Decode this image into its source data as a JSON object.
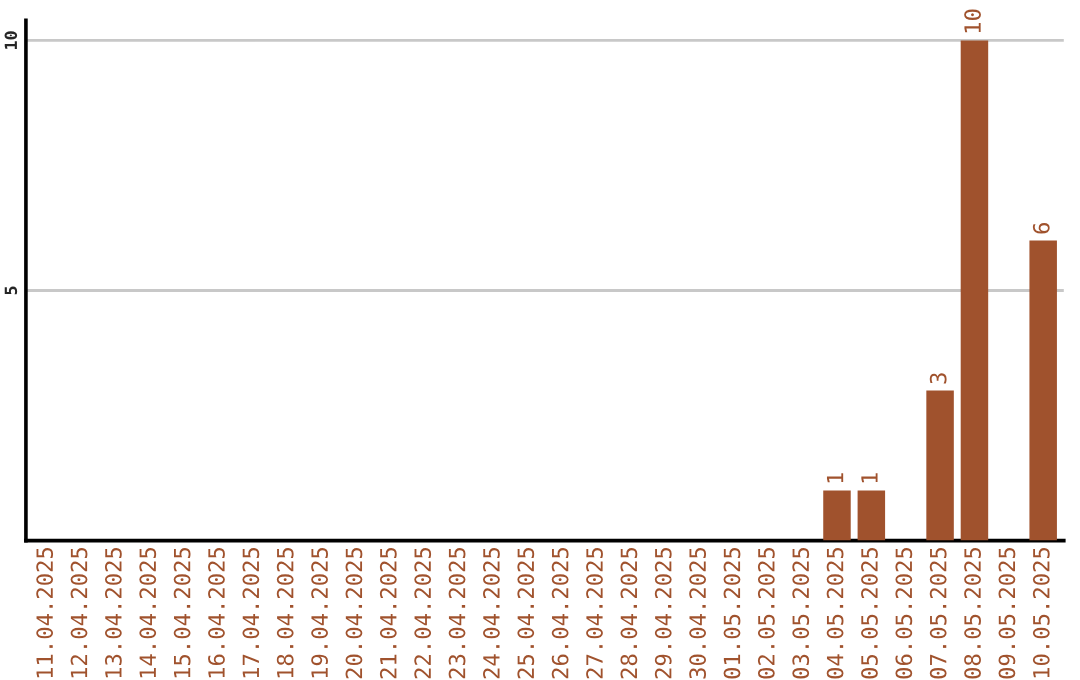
{
  "chart_data": {
    "type": "bar",
    "categories": [
      "11.04.2025",
      "12.04.2025",
      "13.04.2025",
      "14.04.2025",
      "15.04.2025",
      "16.04.2025",
      "17.04.2025",
      "18.04.2025",
      "19.04.2025",
      "20.04.2025",
      "21.04.2025",
      "22.04.2025",
      "23.04.2025",
      "24.04.2025",
      "25.04.2025",
      "26.04.2025",
      "27.04.2025",
      "28.04.2025",
      "29.04.2025",
      "30.04.2025",
      "01.05.2025",
      "02.05.2025",
      "03.05.2025",
      "04.05.2025",
      "05.05.2025",
      "06.05.2025",
      "07.05.2025",
      "08.05.2025",
      "09.05.2025",
      "10.05.2025"
    ],
    "values": [
      0,
      0,
      0,
      0,
      0,
      0,
      0,
      0,
      0,
      0,
      0,
      0,
      0,
      0,
      0,
      0,
      0,
      0,
      0,
      0,
      0,
      0,
      0,
      1,
      1,
      0,
      3,
      10,
      0,
      6
    ],
    "value_labels": [
      null,
      null,
      null,
      null,
      null,
      null,
      null,
      null,
      null,
      null,
      null,
      null,
      null,
      null,
      null,
      null,
      null,
      null,
      null,
      null,
      null,
      null,
      null,
      "1",
      "1",
      null,
      "3",
      "10",
      null,
      "6"
    ],
    "color": "#a0522d",
    "ylim": [
      0,
      10.4
    ],
    "yticks": [
      5,
      10
    ],
    "grid": "y",
    "legend": false
  }
}
